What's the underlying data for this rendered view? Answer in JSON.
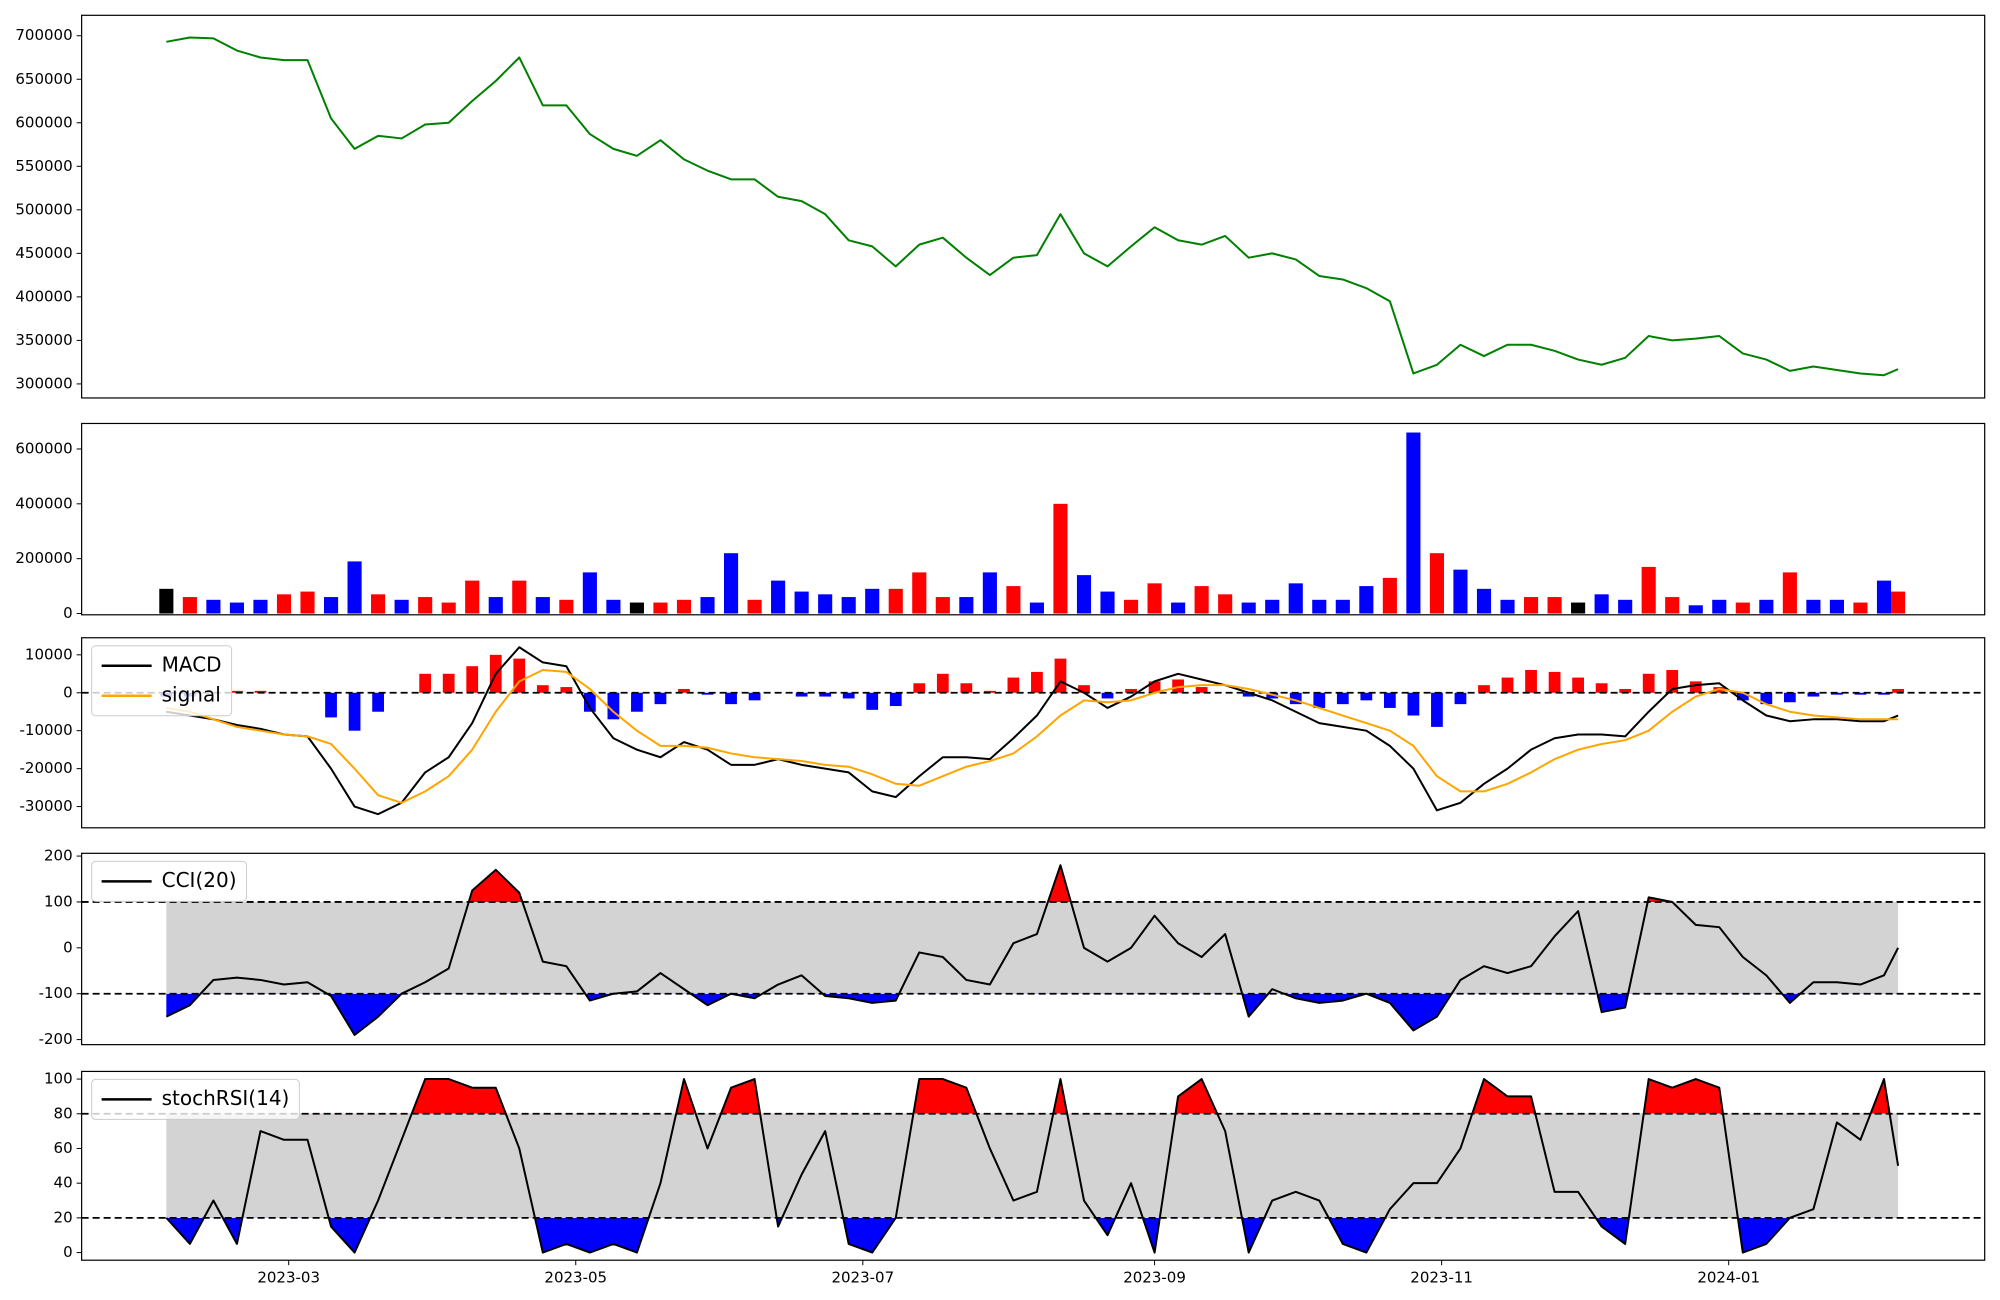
{
  "chart_data": [
    {
      "type": "line",
      "x": [
        33,
        38,
        43,
        48,
        53,
        58,
        63,
        68,
        73,
        78,
        83,
        88,
        93,
        98,
        103,
        108,
        113,
        118,
        123,
        128,
        133,
        138,
        143,
        148,
        153,
        158,
        163,
        168,
        173,
        178,
        183,
        188,
        193,
        198,
        203,
        208,
        213,
        218,
        223,
        228,
        233,
        238,
        243,
        248,
        253,
        258,
        263,
        268,
        273,
        278,
        283,
        288,
        293,
        298,
        303,
        308,
        313,
        318,
        323,
        328,
        333,
        338,
        343,
        348,
        353,
        358,
        363,
        368,
        373,
        378,
        383,
        388,
        393,
        398,
        401
      ],
      "xlim": [
        15,
        419.4
      ],
      "ylim": [
        283870,
        723460
      ],
      "yticks": [
        300000,
        350000,
        400000,
        450000,
        500000,
        550000,
        600000,
        650000,
        700000
      ],
      "series": [
        {
          "color": "green",
          "values": [
            693000,
            698000,
            697000,
            683000,
            675000,
            672000,
            672000,
            605000,
            570000,
            585000,
            582000,
            598000,
            600000,
            625000,
            648000,
            675000,
            620000,
            620000,
            587000,
            570000,
            562000,
            580000,
            558000,
            545000,
            535000,
            535000,
            515000,
            510000,
            495000,
            465000,
            458000,
            435000,
            460000,
            468000,
            445000,
            425000,
            445000,
            448000,
            495000,
            450000,
            435000,
            458000,
            480000,
            465000,
            460000,
            470000,
            445000,
            450000,
            443000,
            424000,
            420000,
            410000,
            395000,
            312000,
            322000,
            345000,
            332000,
            345000,
            345000,
            338000,
            328000,
            322000,
            330000,
            355000,
            350000,
            352000,
            355000,
            335000,
            328000,
            315000,
            320000,
            316000,
            312000,
            310000,
            317000
          ]
        }
      ]
    },
    {
      "type": "bar",
      "x": [
        33,
        38,
        43,
        48,
        53,
        58,
        63,
        68,
        73,
        78,
        83,
        88,
        93,
        98,
        103,
        108,
        113,
        118,
        123,
        128,
        133,
        138,
        143,
        148,
        153,
        158,
        163,
        168,
        173,
        178,
        183,
        188,
        193,
        198,
        203,
        208,
        213,
        218,
        223,
        228,
        233,
        238,
        243,
        248,
        253,
        258,
        263,
        268,
        273,
        278,
        283,
        288,
        293,
        298,
        303,
        308,
        313,
        318,
        323,
        328,
        333,
        338,
        343,
        348,
        353,
        358,
        363,
        368,
        373,
        378,
        383,
        388,
        393,
        398,
        401
      ],
      "xlim": [
        15,
        419.4
      ],
      "ylim": [
        -4650,
        693000
      ],
      "yticks": [
        0,
        200000,
        400000,
        600000
      ],
      "values": [
        90000,
        60000,
        50000,
        40000,
        50000,
        70000,
        80000,
        60000,
        190000,
        70000,
        50000,
        60000,
        40000,
        120000,
        60000,
        120000,
        60000,
        50000,
        150000,
        50000,
        40000,
        40000,
        50000,
        60000,
        220000,
        50000,
        120000,
        80000,
        70000,
        60000,
        90000,
        90000,
        150000,
        60000,
        60000,
        150000,
        100000,
        40000,
        400000,
        140000,
        80000,
        50000,
        110000,
        40000,
        100000,
        70000,
        40000,
        50000,
        110000,
        50000,
        50000,
        100000,
        130000,
        660000,
        220000,
        160000,
        90000,
        50000,
        60000,
        60000,
        40000,
        70000,
        50000,
        170000,
        60000,
        30000,
        50000,
        40000,
        50000,
        150000,
        50000,
        50000,
        40000,
        120000,
        80000
      ],
      "colors": [
        "black",
        "red",
        "blue",
        "blue",
        "blue",
        "red",
        "red",
        "blue",
        "blue",
        "red",
        "blue",
        "red",
        "red",
        "red",
        "blue",
        "red",
        "blue",
        "red",
        "blue",
        "blue",
        "black",
        "red",
        "red",
        "blue",
        "blue",
        "red",
        "blue",
        "blue",
        "blue",
        "blue",
        "blue",
        "red",
        "red",
        "red",
        "blue",
        "blue",
        "red",
        "blue",
        "red",
        "blue",
        "blue",
        "red",
        "red",
        "blue",
        "red",
        "red",
        "blue",
        "blue",
        "blue",
        "blue",
        "blue",
        "blue",
        "red",
        "blue",
        "red",
        "blue",
        "blue",
        "blue",
        "red",
        "red",
        "black",
        "blue",
        "blue",
        "red",
        "red",
        "blue",
        "blue",
        "red",
        "blue",
        "red",
        "blue",
        "blue",
        "red",
        "blue",
        "red"
      ]
    },
    {
      "type": "combo",
      "x": [
        33,
        38,
        43,
        48,
        53,
        58,
        63,
        68,
        73,
        78,
        83,
        88,
        93,
        98,
        103,
        108,
        113,
        118,
        123,
        128,
        133,
        138,
        143,
        148,
        153,
        158,
        163,
        168,
        173,
        178,
        183,
        188,
        193,
        198,
        203,
        208,
        213,
        218,
        223,
        228,
        233,
        238,
        243,
        248,
        253,
        258,
        263,
        268,
        273,
        278,
        283,
        288,
        293,
        298,
        303,
        308,
        313,
        318,
        323,
        328,
        333,
        338,
        343,
        348,
        353,
        358,
        363,
        368,
        373,
        378,
        383,
        388,
        393,
        398,
        401
      ],
      "xlim": [
        15,
        419.4
      ],
      "ylim": [
        -35600,
        14500
      ],
      "yticks": [
        -30000,
        -20000,
        -10000,
        0,
        10000
      ],
      "hlines": [
        0
      ],
      "legend": "upper left",
      "series": [
        {
          "kind": "bar",
          "pos_color": "red",
          "neg_color": "blue",
          "values": [
            -1000,
            -1000,
            0,
            500,
            500,
            0,
            0,
            -6500,
            -10000,
            -5000,
            0,
            5000,
            5000,
            7000,
            10000,
            9000,
            2000,
            1500,
            -5000,
            -7000,
            -5000,
            -3000,
            1000,
            -500,
            -3000,
            -2000,
            0,
            -1000,
            -1000,
            -1500,
            -4500,
            -3500,
            2500,
            5000,
            2500,
            500,
            4000,
            5500,
            9000,
            2000,
            -1500,
            1000,
            3000,
            3500,
            1500,
            0,
            -1000,
            -1500,
            -3000,
            -4000,
            -3000,
            -2000,
            -4000,
            -6000,
            -9000,
            -3000,
            2000,
            4000,
            6000,
            5500,
            4000,
            2500,
            1000,
            5000,
            6000,
            3000,
            1500,
            -2000,
            -3000,
            -2500,
            -1000,
            -500,
            -500,
            -500,
            1000
          ]
        },
        {
          "name": "MACD",
          "color": "black",
          "values": [
            -5000,
            -6000,
            -7000,
            -8500,
            -9500,
            -11000,
            -11500,
            -20000,
            -30000,
            -32000,
            -29000,
            -21000,
            -17000,
            -8000,
            5000,
            12000,
            8000,
            7000,
            -4000,
            -12000,
            -15000,
            -17000,
            -13000,
            -15000,
            -19000,
            -19000,
            -17500,
            -19000,
            -20000,
            -21000,
            -26000,
            -27500,
            -22000,
            -17000,
            -17000,
            -17500,
            -12000,
            -6000,
            3000,
            0,
            -4000,
            -1000,
            3000,
            5000,
            3500,
            2000,
            0,
            -2000,
            -5000,
            -8000,
            -9000,
            -10000,
            -14000,
            -20000,
            -31000,
            -29000,
            -24000,
            -20000,
            -15000,
            -12000,
            -11000,
            -11000,
            -11500,
            -5000,
            1000,
            2000,
            2500,
            -2000,
            -6000,
            -7500,
            -7000,
            -7000,
            -7500,
            -7500,
            -6000
          ]
        },
        {
          "name": "signal",
          "color": "orange",
          "values": [
            -4000,
            -5000,
            -7000,
            -9000,
            -10000,
            -11000,
            -11500,
            -13500,
            -20000,
            -27000,
            -29000,
            -26000,
            -22000,
            -15000,
            -5000,
            3000,
            6000,
            5500,
            1000,
            -5000,
            -10000,
            -14000,
            -14000,
            -14500,
            -16000,
            -17000,
            -17500,
            -18000,
            -19000,
            -19500,
            -21500,
            -24000,
            -24500,
            -22000,
            -19500,
            -18000,
            -16000,
            -11500,
            -6000,
            -2000,
            -2500,
            -2000,
            0,
            1500,
            2000,
            2000,
            1000,
            -500,
            -2000,
            -4000,
            -6000,
            -8000,
            -10000,
            -14000,
            -22000,
            -26000,
            -26000,
            -24000,
            -21000,
            -17500,
            -15000,
            -13500,
            -12500,
            -10000,
            -5000,
            -1000,
            1000,
            0,
            -3000,
            -5000,
            -6000,
            -6500,
            -7000,
            -7000,
            -7000
          ]
        }
      ]
    },
    {
      "type": "oscillator",
      "x": [
        33,
        38,
        43,
        48,
        53,
        58,
        63,
        68,
        73,
        78,
        83,
        88,
        93,
        98,
        103,
        108,
        113,
        118,
        123,
        128,
        133,
        138,
        143,
        148,
        153,
        158,
        163,
        168,
        173,
        178,
        183,
        188,
        193,
        198,
        203,
        208,
        213,
        218,
        223,
        228,
        233,
        238,
        243,
        248,
        253,
        258,
        263,
        268,
        273,
        278,
        283,
        288,
        293,
        298,
        303,
        308,
        313,
        318,
        323,
        328,
        333,
        338,
        343,
        348,
        353,
        358,
        363,
        368,
        373,
        378,
        383,
        388,
        393,
        398,
        401
      ],
      "xlim": [
        15,
        419.4
      ],
      "ylim": [
        -211,
        206
      ],
      "yticks": [
        -200,
        -100,
        0,
        100,
        200
      ],
      "levels": [
        -100,
        100
      ],
      "band_color": "lightgray",
      "above_color": "red",
      "below_color": "blue",
      "legend": "upper left",
      "series": [
        {
          "name": "CCI(20)",
          "color": "black",
          "values": [
            -150,
            -125,
            -70,
            -65,
            -70,
            -80,
            -75,
            -105,
            -190,
            -150,
            -100,
            -75,
            -45,
            125,
            170,
            120,
            -30,
            -40,
            -115,
            -100,
            -95,
            -55,
            -90,
            -125,
            -100,
            -110,
            -80,
            -60,
            -105,
            -110,
            -120,
            -115,
            -10,
            -20,
            -70,
            -80,
            10,
            30,
            180,
            0,
            -30,
            0,
            70,
            10,
            -20,
            30,
            -150,
            -90,
            -110,
            -120,
            -115,
            -100,
            -120,
            -180,
            -150,
            -70,
            -40,
            -55,
            -40,
            25,
            80,
            -140,
            -130,
            110,
            100,
            50,
            45,
            -20,
            -60,
            -120,
            -75,
            -75,
            -80,
            -60,
            0
          ]
        }
      ]
    },
    {
      "type": "oscillator",
      "x": [
        33,
        38,
        43,
        48,
        53,
        58,
        63,
        68,
        73,
        78,
        83,
        88,
        93,
        98,
        103,
        108,
        113,
        118,
        123,
        128,
        133,
        138,
        143,
        148,
        153,
        158,
        163,
        168,
        173,
        178,
        183,
        188,
        193,
        198,
        203,
        208,
        213,
        218,
        223,
        228,
        233,
        238,
        243,
        248,
        253,
        258,
        263,
        268,
        273,
        278,
        283,
        288,
        293,
        298,
        303,
        308,
        313,
        318,
        323,
        328,
        333,
        338,
        343,
        348,
        353,
        358,
        363,
        368,
        373,
        378,
        383,
        388,
        393,
        398,
        401
      ],
      "xlim": [
        15,
        419.4
      ],
      "ylim": [
        -4.4,
        104.4
      ],
      "yticks": [
        0,
        20,
        40,
        60,
        80,
        100
      ],
      "xticks": [
        {
          "value": 59,
          "label": "2023-03"
        },
        {
          "value": 120,
          "label": "2023-05"
        },
        {
          "value": 181,
          "label": "2023-07"
        },
        {
          "value": 243,
          "label": "2023-09"
        },
        {
          "value": 304,
          "label": "2023-11"
        },
        {
          "value": 365,
          "label": "2024-01"
        }
      ],
      "levels": [
        20,
        80
      ],
      "band_color": "lightgray",
      "above_color": "red",
      "below_color": "blue",
      "legend": "upper left",
      "series": [
        {
          "name": "stochRSI(14)",
          "color": "black",
          "values": [
            20,
            5,
            30,
            5,
            70,
            65,
            65,
            15,
            0,
            30,
            65,
            100,
            100,
            95,
            95,
            60,
            0,
            5,
            0,
            5,
            0,
            40,
            100,
            60,
            95,
            100,
            15,
            45,
            70,
            5,
            0,
            20,
            100,
            100,
            95,
            60,
            30,
            35,
            100,
            30,
            10,
            40,
            0,
            90,
            100,
            70,
            0,
            30,
            35,
            30,
            5,
            0,
            25,
            40,
            40,
            60,
            100,
            90,
            90,
            35,
            35,
            15,
            5,
            100,
            95,
            100,
            95,
            0,
            5,
            20,
            25,
            75,
            65,
            100,
            50
          ]
        }
      ]
    }
  ]
}
